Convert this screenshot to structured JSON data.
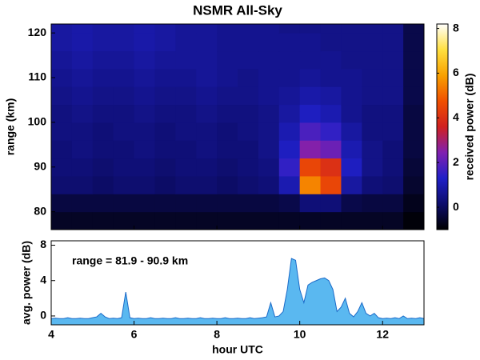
{
  "chart_data": [
    {
      "type": "heatmap",
      "title": "NSMR All-Sky",
      "ylabel": "range (km)",
      "colorbar_label": "received power (dB)",
      "x_edges": [
        4,
        4.5,
        5,
        5.5,
        6,
        6.5,
        7,
        7.5,
        8,
        8.5,
        9,
        9.5,
        10,
        10.5,
        11,
        11.5,
        12,
        12.5,
        13
      ],
      "y_edges": [
        76,
        80,
        84,
        88,
        92,
        96,
        100,
        104,
        108,
        112,
        116,
        120,
        122
      ],
      "values": [
        [
          -0.6,
          -0.6,
          -0.6,
          -0.6,
          -0.6,
          -0.6,
          -0.6,
          -0.6,
          -0.6,
          -0.6,
          -0.6,
          -0.6,
          -0.6,
          -0.6,
          -0.6,
          -0.6,
          -0.6,
          -0.9
        ],
        [
          -0.3,
          -0.3,
          -0.3,
          -0.3,
          -0.3,
          -0.3,
          -0.3,
          -0.3,
          -0.3,
          -0.3,
          -0.3,
          -0.2,
          0.3,
          0.3,
          -0.2,
          -0.3,
          -0.3,
          -0.7
        ],
        [
          0.2,
          0.2,
          0.1,
          0.2,
          0.2,
          0.1,
          0.2,
          0.2,
          0.1,
          0.2,
          0.3,
          1.0,
          5.5,
          4.5,
          0.8,
          0.3,
          0.2,
          -0.5
        ],
        [
          0.3,
          0.3,
          0.2,
          0.3,
          0.3,
          0.2,
          0.3,
          0.3,
          0.2,
          0.3,
          0.4,
          1.5,
          4.5,
          4.0,
          1.2,
          0.5,
          0.3,
          -0.4
        ],
        [
          0.3,
          0.4,
          0.3,
          0.3,
          0.4,
          0.3,
          0.3,
          0.4,
          0.3,
          0.3,
          0.5,
          1.2,
          2.5,
          2.2,
          1.0,
          0.5,
          0.3,
          -0.3
        ],
        [
          0.4,
          0.4,
          0.3,
          0.4,
          0.4,
          0.3,
          0.4,
          0.4,
          0.3,
          0.4,
          0.5,
          1.0,
          1.8,
          1.5,
          0.8,
          0.4,
          0.4,
          -0.3
        ],
        [
          0.4,
          0.5,
          0.4,
          0.4,
          0.5,
          0.4,
          0.4,
          0.5,
          0.4,
          0.4,
          0.5,
          0.8,
          1.2,
          1.0,
          0.6,
          0.4,
          0.4,
          -0.3
        ],
        [
          0.5,
          0.6,
          0.5,
          0.5,
          0.6,
          0.5,
          0.5,
          0.6,
          0.5,
          0.5,
          0.6,
          0.7,
          0.9,
          0.8,
          0.6,
          0.5,
          0.5,
          -0.2
        ],
        [
          0.6,
          0.7,
          0.6,
          0.6,
          0.7,
          0.6,
          0.6,
          0.7,
          0.6,
          0.5,
          0.6,
          0.6,
          0.7,
          0.6,
          0.6,
          0.5,
          0.5,
          -0.2
        ],
        [
          0.7,
          0.8,
          0.7,
          0.7,
          0.8,
          0.7,
          0.7,
          0.7,
          0.6,
          0.6,
          0.6,
          0.6,
          0.6,
          0.6,
          0.5,
          0.5,
          0.5,
          -0.2
        ],
        [
          0.8,
          0.9,
          0.8,
          0.8,
          0.9,
          0.8,
          0.7,
          0.7,
          0.6,
          0.6,
          0.6,
          0.6,
          0.6,
          0.5,
          0.5,
          0.5,
          0.5,
          -0.2
        ],
        [
          0.8,
          0.9,
          0.8,
          0.8,
          0.9,
          0.8,
          0.7,
          0.7,
          0.6,
          0.6,
          0.6,
          0.5,
          0.5,
          0.5,
          0.5,
          0.5,
          0.5,
          -0.2
        ]
      ],
      "ylim": [
        76,
        122
      ],
      "yticks": [
        80,
        90,
        100,
        110,
        120
      ],
      "clim": [
        -1,
        8.2
      ],
      "cticks": [
        0,
        2,
        4,
        6,
        8
      ],
      "colormap": [
        "#000000",
        "#0d0d6b",
        "#2020c8",
        "#8020b0",
        "#d02020",
        "#f05000",
        "#f8a000",
        "#ffe040",
        "#ffffff"
      ]
    },
    {
      "type": "area",
      "ylabel": "avg. power (dB)",
      "xlabel": "hour UTC",
      "annotation": "range = 81.9 - 90.9 km",
      "color": "#1a6ac8",
      "fill": "#5ab8f0",
      "x": [
        4,
        4.1,
        4.2,
        4.3,
        4.4,
        4.5,
        4.6,
        4.7,
        4.8,
        4.9,
        5,
        5.1,
        5.2,
        5.3,
        5.4,
        5.5,
        5.6,
        5.7,
        5.8,
        5.9,
        6,
        6.1,
        6.2,
        6.3,
        6.4,
        6.5,
        6.6,
        6.7,
        6.8,
        6.9,
        7,
        7.1,
        7.2,
        7.3,
        7.4,
        7.5,
        7.6,
        7.7,
        7.8,
        7.9,
        8,
        8.1,
        8.2,
        8.3,
        8.4,
        8.5,
        8.6,
        8.7,
        8.8,
        8.9,
        9,
        9.1,
        9.2,
        9.3,
        9.4,
        9.5,
        9.6,
        9.7,
        9.8,
        9.9,
        10,
        10.1,
        10.2,
        10.3,
        10.4,
        10.5,
        10.6,
        10.7,
        10.8,
        10.9,
        11,
        11.1,
        11.2,
        11.3,
        11.4,
        11.5,
        11.6,
        11.7,
        11.8,
        11.9,
        12,
        12.1,
        12.2,
        12.3,
        12.4,
        12.5,
        12.6,
        12.7,
        12.8,
        12.9,
        13
      ],
      "values": [
        -0.3,
        -0.25,
        -0.3,
        -0.3,
        -0.2,
        -0.3,
        -0.3,
        -0.25,
        -0.3,
        -0.3,
        -0.2,
        -0.1,
        0.3,
        -0.1,
        -0.3,
        -0.25,
        -0.3,
        -0.2,
        2.7,
        -0.2,
        -0.3,
        -0.25,
        -0.3,
        -0.3,
        -0.2,
        -0.3,
        -0.3,
        -0.25,
        -0.3,
        -0.3,
        -0.2,
        -0.3,
        -0.3,
        -0.25,
        -0.3,
        -0.3,
        -0.2,
        -0.3,
        -0.3,
        -0.25,
        -0.3,
        -0.3,
        -0.2,
        -0.3,
        -0.3,
        -0.25,
        -0.3,
        -0.3,
        -0.2,
        -0.3,
        -0.25,
        -0.2,
        -0.1,
        1.5,
        -0.1,
        0.0,
        0.5,
        3.0,
        6.5,
        6.3,
        3.0,
        1.5,
        3.5,
        3.8,
        4.0,
        4.2,
        4.3,
        4.0,
        3.0,
        0.5,
        1.0,
        2.0,
        0.3,
        -0.1,
        0.5,
        1.5,
        0.3,
        0.0,
        0.3,
        -0.2,
        -0.3,
        -0.25,
        -0.3,
        -0.2,
        -0.3,
        0.0,
        -0.3,
        -0.25,
        -0.3,
        -0.2,
        -0.3
      ],
      "xlim": [
        4,
        13
      ],
      "xticks": [
        4,
        6,
        8,
        10,
        12
      ],
      "ylim": [
        -1,
        8.5
      ],
      "yticks": [
        0,
        4,
        8
      ]
    }
  ]
}
